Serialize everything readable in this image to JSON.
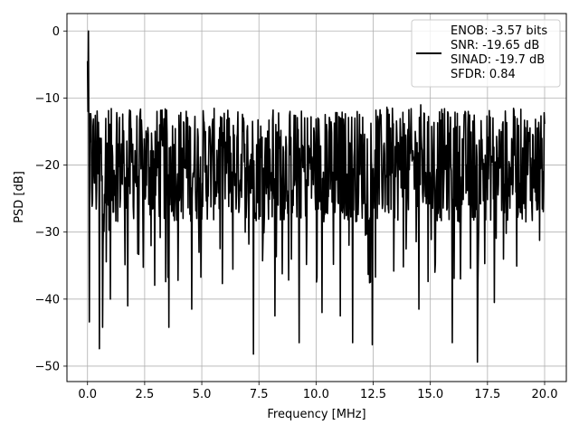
{
  "chart_data": {
    "type": "line",
    "title": "",
    "xlabel": "Frequency [MHz]",
    "ylabel": "PSD [dB]",
    "xlim": [
      -0.9,
      20.95
    ],
    "ylim": [
      -52.3,
      2.6
    ],
    "xticks": [
      0.0,
      2.5,
      5.0,
      7.5,
      10.0,
      12.5,
      15.0,
      17.5,
      20.0
    ],
    "xtick_labels": [
      "0.0",
      "2.5",
      "5.0",
      "7.5",
      "10.0",
      "12.5",
      "15.0",
      "17.5",
      "20.0"
    ],
    "yticks": [
      0,
      -10,
      -20,
      -30,
      -40,
      -50
    ],
    "ytick_labels": [
      "0",
      "−10",
      "−20",
      "−30",
      "−40",
      "−50"
    ],
    "grid": true,
    "legend_position": "top-right",
    "series_color": "#000000",
    "x_range": [
      0.0,
      20.0
    ],
    "peak": {
      "x": 0.04,
      "y": 0.0
    },
    "noise_floor": {
      "upper": -12,
      "lower": -28,
      "center": -20
    },
    "deep_dips": [
      {
        "x": 0.07,
        "y": -43.4
      },
      {
        "x": 0.52,
        "y": -47.4
      },
      {
        "x": 0.65,
        "y": -44.2
      },
      {
        "x": 1.0,
        "y": -40.0
      },
      {
        "x": 1.75,
        "y": -41.0
      },
      {
        "x": 3.55,
        "y": -44.2
      },
      {
        "x": 4.55,
        "y": -41.5
      },
      {
        "x": 7.25,
        "y": -48.2
      },
      {
        "x": 8.2,
        "y": -42.5
      },
      {
        "x": 9.25,
        "y": -46.5
      },
      {
        "x": 10.25,
        "y": -42.0
      },
      {
        "x": 11.05,
        "y": -42.5
      },
      {
        "x": 11.6,
        "y": -46.5
      },
      {
        "x": 12.45,
        "y": -46.8
      },
      {
        "x": 14.5,
        "y": -41.5
      },
      {
        "x": 15.95,
        "y": -46.5
      },
      {
        "x": 17.05,
        "y": -49.4
      },
      {
        "x": 17.8,
        "y": -40.5
      }
    ],
    "legend": {
      "lines": [
        "ENOB: -3.57 bits",
        "SNR: -19.65 dB",
        "SINAD: -19.7 dB",
        "SFDR: 0.84"
      ]
    }
  }
}
